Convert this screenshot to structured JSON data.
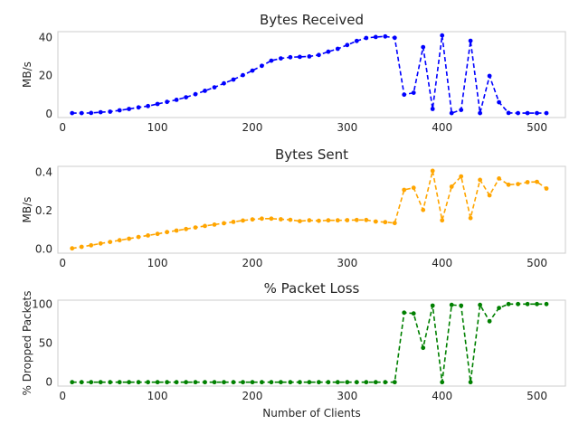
{
  "chart_data": [
    {
      "type": "line",
      "title": "Bytes Received",
      "xlabel": "",
      "ylabel": "MB/s",
      "xlim": [
        -5,
        530
      ],
      "ylim": [
        -2,
        43
      ],
      "xticks": [
        0,
        100,
        200,
        300,
        400,
        500
      ],
      "yticks": [
        0,
        20,
        40
      ],
      "yticklabels": [
        "0",
        "20",
        "40"
      ],
      "grid": false,
      "series": [
        {
          "color": "#0000ff",
          "linestyle": "dashed",
          "marker": "circle",
          "x": [
            10,
            20,
            30,
            40,
            50,
            60,
            70,
            80,
            90,
            100,
            110,
            120,
            130,
            140,
            150,
            160,
            170,
            180,
            190,
            200,
            210,
            220,
            230,
            240,
            250,
            260,
            270,
            280,
            290,
            300,
            310,
            320,
            330,
            340,
            350,
            360,
            370,
            380,
            390,
            400,
            410,
            420,
            430,
            440,
            450,
            460,
            470,
            480,
            490,
            500,
            510
          ],
          "values": [
            0.3,
            0.3,
            0.4,
            0.8,
            1.1,
            1.8,
            2.5,
            3.3,
            4.0,
            5.1,
            6.2,
            7.3,
            8.6,
            10.2,
            12.0,
            13.8,
            15.9,
            17.9,
            20.2,
            22.6,
            25.1,
            27.8,
            29.0,
            29.6,
            29.8,
            30.0,
            30.8,
            32.5,
            34.0,
            36.0,
            38.1,
            39.7,
            40.2,
            40.5,
            39.8,
            10.0,
            11.0,
            34.9,
            2.5,
            41.0,
            0.3,
            2.0,
            38.2,
            0.3,
            19.8,
            6.0,
            0.4,
            0.3,
            0.3,
            0.3,
            0.3
          ]
        }
      ]
    },
    {
      "type": "line",
      "title": "Bytes Sent",
      "xlabel": "",
      "ylabel": "MB/s",
      "xlim": [
        -5,
        530
      ],
      "ylim": [
        -0.02,
        0.43
      ],
      "xticks": [
        0,
        100,
        200,
        300,
        400,
        500
      ],
      "yticks": [
        0,
        0.2,
        0.4
      ],
      "yticklabels": [
        "0.0",
        "0.2",
        "0.4"
      ],
      "grid": false,
      "series": [
        {
          "color": "#ffa500",
          "linestyle": "dashed",
          "marker": "circle",
          "x": [
            10,
            20,
            30,
            40,
            50,
            60,
            70,
            80,
            90,
            100,
            110,
            120,
            130,
            140,
            150,
            160,
            170,
            180,
            190,
            200,
            210,
            220,
            230,
            240,
            250,
            260,
            270,
            280,
            290,
            300,
            310,
            320,
            330,
            340,
            350,
            360,
            370,
            380,
            390,
            400,
            410,
            420,
            430,
            440,
            450,
            460,
            470,
            480,
            490,
            500,
            510
          ],
          "values": [
            0.005,
            0.013,
            0.021,
            0.03,
            0.038,
            0.047,
            0.055,
            0.064,
            0.072,
            0.08,
            0.089,
            0.097,
            0.105,
            0.113,
            0.121,
            0.128,
            0.135,
            0.142,
            0.149,
            0.155,
            0.159,
            0.159,
            0.156,
            0.153,
            0.146,
            0.15,
            0.148,
            0.15,
            0.15,
            0.151,
            0.152,
            0.152,
            0.144,
            0.141,
            0.136,
            0.308,
            0.319,
            0.204,
            0.407,
            0.15,
            0.325,
            0.378,
            0.162,
            0.36,
            0.28,
            0.367,
            0.335,
            0.338,
            0.348,
            0.35,
            0.315
          ]
        }
      ]
    },
    {
      "type": "line",
      "title": "% Packet Loss",
      "xlabel": "Number of Clients",
      "ylabel": "% Dropped Packets",
      "xlim": [
        -5,
        530
      ],
      "ylim": [
        -5,
        105
      ],
      "xticks": [
        0,
        100,
        200,
        300,
        400,
        500
      ],
      "yticks": [
        0,
        50,
        100
      ],
      "yticklabels": [
        "0",
        "50",
        "100"
      ],
      "grid": false,
      "series": [
        {
          "color": "#008000",
          "linestyle": "dashed",
          "marker": "circle",
          "x": [
            10,
            20,
            30,
            40,
            50,
            60,
            70,
            80,
            90,
            100,
            110,
            120,
            130,
            140,
            150,
            160,
            170,
            180,
            190,
            200,
            210,
            220,
            230,
            240,
            250,
            260,
            270,
            280,
            290,
            300,
            310,
            320,
            330,
            340,
            350,
            360,
            370,
            380,
            390,
            400,
            410,
            420,
            430,
            440,
            450,
            460,
            470,
            480,
            490,
            500,
            510
          ],
          "values": [
            0,
            0,
            0,
            0,
            0,
            0,
            0,
            0,
            0,
            0,
            0,
            0,
            0,
            0,
            0,
            0,
            0,
            0,
            0,
            0,
            0,
            0,
            0,
            0,
            0,
            0,
            0,
            0,
            0,
            0,
            0,
            0,
            0,
            0,
            0,
            89,
            88,
            44,
            98,
            0,
            99,
            98,
            0,
            99,
            78,
            95,
            100,
            100,
            100,
            100,
            100
          ]
        }
      ]
    }
  ]
}
